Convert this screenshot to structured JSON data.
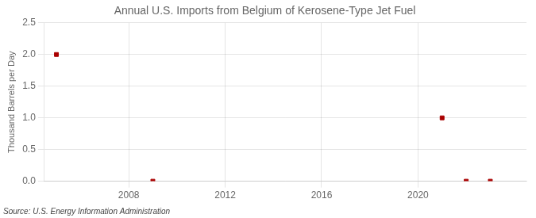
{
  "chart_data": {
    "type": "scatter",
    "title": "Annual U.S. Imports from Belgium of Kerosene-Type Jet Fuel",
    "ylabel": "Thousand Barrels per Day",
    "annotations": [
      "Source: U.S. Energy Information Administration"
    ],
    "x": [
      2005,
      2009,
      2021,
      2022,
      2023
    ],
    "values": [
      2.0,
      0.0,
      1.0,
      0.0,
      0.0
    ],
    "color": "#aa0000",
    "marker": "square",
    "xlim": [
      2004.5,
      2024.5
    ],
    "xticks": [
      2008,
      2012,
      2016,
      2020
    ],
    "ylim": [
      0,
      2.5
    ],
    "yticks": [
      {
        "value": 0.0,
        "label": "0.0"
      },
      0.5,
      {
        "value": 1.0,
        "label": "1.0"
      },
      1.5,
      {
        "value": 2.0,
        "label": "2.0"
      },
      2.5
    ],
    "grid": true
  }
}
